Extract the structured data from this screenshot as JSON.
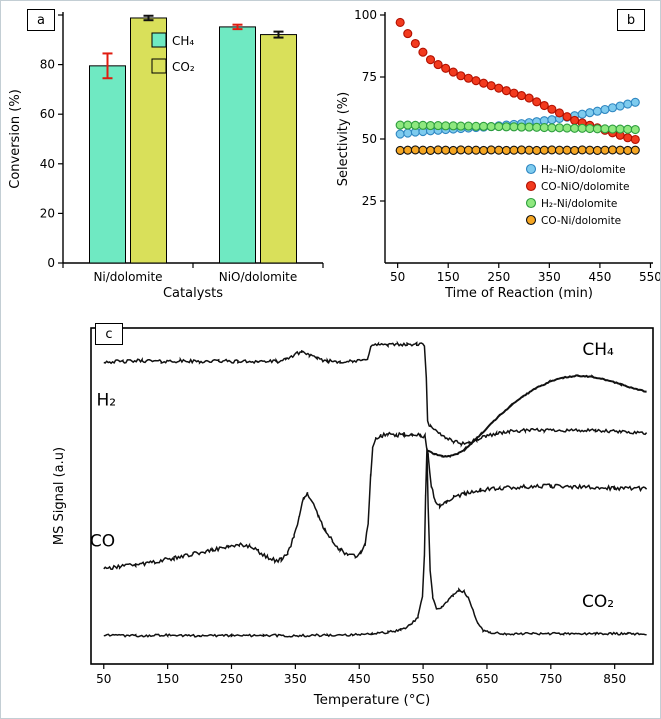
{
  "figure": {
    "background": "#ffffff",
    "border_color": "#c3ced4"
  },
  "chart_data": [
    {
      "id": "panel_a",
      "type": "bar",
      "panel_label": "a",
      "xlabel": "Catalysts",
      "ylabel": "Conversion (%)",
      "ylim": [
        0,
        100
      ],
      "yticks": [
        0,
        20,
        40,
        60,
        80,
        100
      ],
      "categories": [
        "Ni/dolomite",
        "NiO/dolomite"
      ],
      "legend_pos": "inside-top-center",
      "series": [
        {
          "name": "CH₄",
          "color": "#6fe9c2",
          "edge": "#000000",
          "values": [
            79.5,
            95.2
          ],
          "errors": [
            5.0,
            0.9
          ],
          "error_color": "#e01c10"
        },
        {
          "name": "CO₂",
          "color": "#d9e05a",
          "edge": "#000000",
          "values": [
            98.8,
            92.1
          ],
          "errors": [
            0.9,
            1.2
          ],
          "error_color": "#111111"
        }
      ]
    },
    {
      "id": "panel_b",
      "type": "scatter",
      "panel_label": "b",
      "xlabel": "Time of Reaction (min)",
      "ylabel": "Selectivity (%)",
      "xlim": [
        25,
        555
      ],
      "xticks": [
        50,
        150,
        250,
        350,
        450,
        550
      ],
      "ylim": [
        0,
        100
      ],
      "yticks": [
        25,
        50,
        75,
        100
      ],
      "legend_pos": "inside-right-middle",
      "x": [
        55,
        70,
        85,
        100,
        115,
        130,
        145,
        160,
        175,
        190,
        205,
        220,
        235,
        250,
        265,
        280,
        295,
        310,
        325,
        340,
        355,
        370,
        385,
        400,
        415,
        430,
        445,
        460,
        475,
        490,
        505,
        520
      ],
      "series": [
        {
          "name": "H₂-NiO/dolomite",
          "color": "#7ecbee",
          "edge": "#2e86c1",
          "values": [
            52,
            52.4,
            52.8,
            53,
            53.3,
            53.5,
            53.8,
            54,
            54.2,
            54.4,
            54.6,
            54.8,
            55,
            55.3,
            55.6,
            55.9,
            56.2,
            56.6,
            57,
            57.4,
            57.8,
            58.3,
            58.8,
            59.4,
            60,
            60.6,
            61.2,
            61.9,
            62.6,
            63.3,
            64.1,
            64.8
          ]
        },
        {
          "name": "CO-NiO/dolomite",
          "color": "#f23a1e",
          "edge": "#b31000",
          "values": [
            97,
            92.5,
            88.5,
            85,
            82,
            80,
            78.5,
            77,
            75.5,
            74.5,
            73.5,
            72.5,
            71.5,
            70.5,
            69.5,
            68.5,
            67.5,
            66.5,
            65,
            63.5,
            62,
            60.5,
            59,
            57.5,
            56.5,
            55.5,
            54.5,
            53.5,
            52.5,
            51.5,
            50.5,
            49.8
          ]
        },
        {
          "name": "H₂-Ni/dolomite",
          "color": "#8fe87f",
          "edge": "#2e9e3e",
          "values": [
            55.6,
            55.6,
            55.5,
            55.5,
            55.4,
            55.4,
            55.3,
            55.3,
            55.2,
            55.2,
            55.1,
            55.1,
            55,
            55,
            54.9,
            54.9,
            54.8,
            54.8,
            54.7,
            54.6,
            54.5,
            54.5,
            54.4,
            54.3,
            54.3,
            54.2,
            54.1,
            54.1,
            54,
            54,
            53.9,
            53.8
          ]
        },
        {
          "name": "CO-Ni/dolomite",
          "color": "#f5a623",
          "edge": "#111111",
          "values": [
            45.4,
            45.5,
            45.6,
            45.5,
            45.4,
            45.6,
            45.5,
            45.4,
            45.6,
            45.5,
            45.5,
            45.4,
            45.6,
            45.5,
            45.4,
            45.5,
            45.6,
            45.5,
            45.4,
            45.5,
            45.6,
            45.5,
            45.5,
            45.4,
            45.6,
            45.5,
            45.4,
            45.5,
            45.6,
            45.5,
            45.4,
            45.5
          ]
        }
      ]
    },
    {
      "id": "panel_c",
      "type": "line",
      "panel_label": "c",
      "xlabel": "Temperature (°C)",
      "ylabel": "MS Signal (a.u)",
      "xlim": [
        30,
        910
      ],
      "xticks": [
        50,
        150,
        250,
        350,
        450,
        550,
        650,
        750,
        850
      ],
      "ylim": [
        0,
        100
      ],
      "line_color": "#111111",
      "series": [
        {
          "name": "H₂",
          "noise": 0.5,
          "width": 1.5,
          "label_pos": [
            54,
            77
          ],
          "points": [
            [
              50,
              90
            ],
            [
              80,
              90
            ],
            [
              110,
              90.3
            ],
            [
              140,
              90
            ],
            [
              170,
              90.2
            ],
            [
              200,
              90
            ],
            [
              230,
              90.2
            ],
            [
              260,
              90
            ],
            [
              290,
              90.1
            ],
            [
              320,
              90
            ],
            [
              335,
              90.5
            ],
            [
              348,
              92
            ],
            [
              360,
              93
            ],
            [
              372,
              92
            ],
            [
              384,
              90.8
            ],
            [
              400,
              90.2
            ],
            [
              420,
              90
            ],
            [
              440,
              90
            ],
            [
              455,
              90.3
            ],
            [
              463,
              91
            ],
            [
              468,
              94.5
            ],
            [
              480,
              95.2
            ],
            [
              495,
              94.8
            ],
            [
              510,
              95.3
            ],
            [
              525,
              95
            ],
            [
              540,
              95.2
            ],
            [
              552,
              95
            ],
            [
              555,
              85
            ],
            [
              557,
              72
            ],
            [
              562,
              70.5
            ],
            [
              572,
              69
            ],
            [
              585,
              67.5
            ],
            [
              598,
              66.3
            ],
            [
              610,
              65.6
            ],
            [
              622,
              65.9
            ],
            [
              634,
              66.8
            ],
            [
              648,
              67.8
            ],
            [
              665,
              68.6
            ],
            [
              685,
              69.2
            ],
            [
              710,
              69.5
            ],
            [
              740,
              69.6
            ],
            [
              780,
              69.6
            ],
            [
              820,
              69.4
            ],
            [
              860,
              69.1
            ],
            [
              900,
              68.8
            ]
          ]
        },
        {
          "name": "CH₄",
          "noise": 0.15,
          "width": 2,
          "label_pos": [
            824,
            92
          ],
          "points": [
            [
              556,
              63.5
            ],
            [
              568,
              62.5
            ],
            [
              580,
              61.8
            ],
            [
              592,
              61.8
            ],
            [
              604,
              62.6
            ],
            [
              616,
              64
            ],
            [
              628,
              66
            ],
            [
              640,
              68.3
            ],
            [
              654,
              71
            ],
            [
              670,
              74
            ],
            [
              688,
              77
            ],
            [
              706,
              79.6
            ],
            [
              726,
              82
            ],
            [
              748,
              84
            ],
            [
              770,
              85.3
            ],
            [
              792,
              85.8
            ],
            [
              815,
              85.5
            ],
            [
              838,
              84.5
            ],
            [
              860,
              83.2
            ],
            [
              880,
              82
            ],
            [
              900,
              81
            ]
          ]
        },
        {
          "name": "CO",
          "noise": 0.6,
          "width": 1.5,
          "label_pos": [
            48,
            35
          ],
          "points": [
            [
              50,
              28.5
            ],
            [
              75,
              29
            ],
            [
              100,
              29.5
            ],
            [
              130,
              30.5
            ],
            [
              160,
              31.5
            ],
            [
              190,
              32.8
            ],
            [
              220,
              34
            ],
            [
              245,
              35
            ],
            [
              262,
              35.6
            ],
            [
              278,
              35
            ],
            [
              292,
              33.5
            ],
            [
              306,
              31.8
            ],
            [
              318,
              30.8
            ],
            [
              328,
              31
            ],
            [
              338,
              33
            ],
            [
              348,
              38
            ],
            [
              356,
              44
            ],
            [
              363,
              49.5
            ],
            [
              369,
              50.8
            ],
            [
              376,
              48.5
            ],
            [
              386,
              44
            ],
            [
              396,
              40
            ],
            [
              408,
              36.5
            ],
            [
              420,
              34
            ],
            [
              432,
              32.5
            ],
            [
              444,
              32
            ],
            [
              452,
              33
            ],
            [
              459,
              35.5
            ],
            [
              464,
              42
            ],
            [
              468,
              56
            ],
            [
              471,
              64
            ],
            [
              476,
              67
            ],
            [
              484,
              68
            ],
            [
              495,
              68.3
            ],
            [
              508,
              68
            ],
            [
              520,
              68.4
            ],
            [
              533,
              68
            ],
            [
              545,
              68.2
            ],
            [
              553,
              67.8
            ],
            [
              558,
              62
            ],
            [
              563,
              53
            ],
            [
              569,
              48.5
            ],
            [
              576,
              47
            ],
            [
              586,
              48.3
            ],
            [
              598,
              49.6
            ],
            [
              615,
              50.8
            ],
            [
              640,
              51.8
            ],
            [
              670,
              52.3
            ],
            [
              710,
              52.8
            ],
            [
              750,
              53
            ],
            [
              800,
              52.7
            ],
            [
              850,
              52.3
            ],
            [
              900,
              52.2
            ]
          ]
        },
        {
          "name": "CO₂",
          "noise": 0.35,
          "width": 1.5,
          "label_pos": [
            824,
            17
          ],
          "points": [
            [
              50,
              8.5
            ],
            [
              100,
              8.4
            ],
            [
              150,
              8.6
            ],
            [
              200,
              8.4
            ],
            [
              250,
              8.5
            ],
            [
              300,
              8.5
            ],
            [
              350,
              8.4
            ],
            [
              400,
              8.6
            ],
            [
              440,
              8.7
            ],
            [
              470,
              9
            ],
            [
              495,
              9.4
            ],
            [
              515,
              10.2
            ],
            [
              530,
              11.5
            ],
            [
              542,
              14
            ],
            [
              549,
              20
            ],
            [
              552,
              32
            ],
            [
              554,
              50
            ],
            [
              556,
              64
            ],
            [
              558,
              46
            ],
            [
              561,
              28
            ],
            [
              565,
              20
            ],
            [
              571,
              16.5
            ],
            [
              579,
              16.8
            ],
            [
              588,
              18.5
            ],
            [
              597,
              20.5
            ],
            [
              606,
              22
            ],
            [
              614,
              21.5
            ],
            [
              621,
              19.5
            ],
            [
              628,
              16
            ],
            [
              636,
              12
            ],
            [
              644,
              10
            ],
            [
              655,
              9.2
            ],
            [
              680,
              9
            ],
            [
              720,
              9
            ],
            [
              770,
              9
            ],
            [
              820,
              9
            ],
            [
              870,
              9
            ],
            [
              900,
              9
            ]
          ]
        }
      ]
    }
  ]
}
